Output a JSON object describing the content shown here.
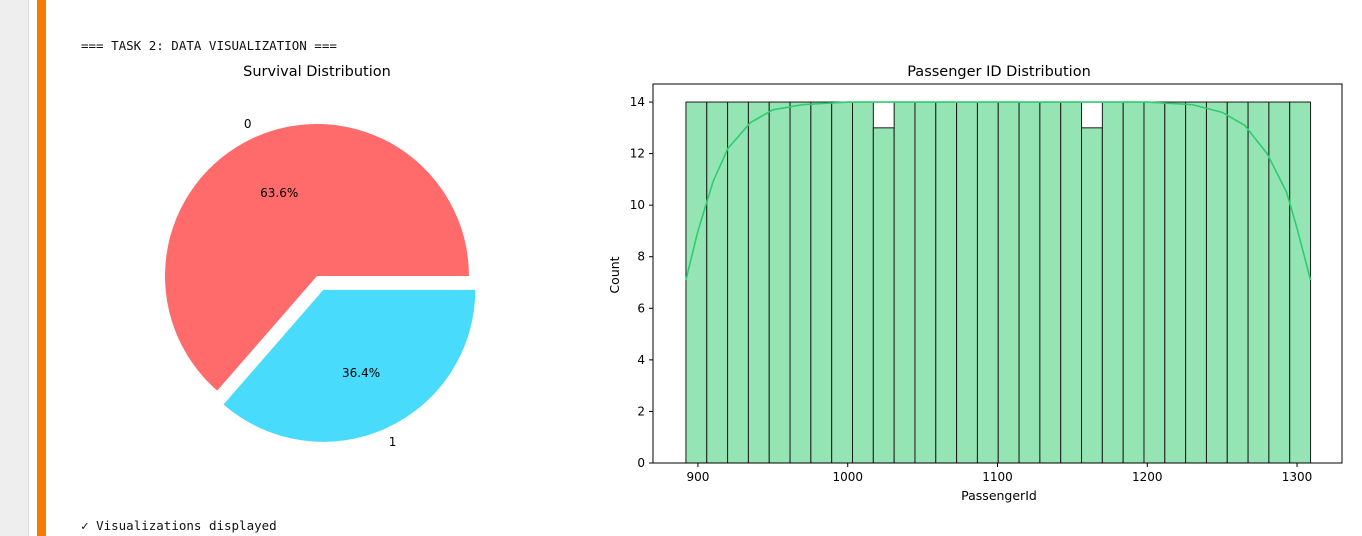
{
  "cell": {
    "accent_color": "#f57c00",
    "header_text": "=== TASK 2: DATA VISUALIZATION ===",
    "status_icon": "✓",
    "status_text": "Visualizations displayed"
  },
  "chart_data": [
    {
      "type": "pie",
      "title": "Survival Distribution",
      "labels": [
        "0",
        "1"
      ],
      "values": [
        63.6,
        36.4
      ],
      "value_labels": [
        "63.6%",
        "36.4%"
      ],
      "colors": [
        "#ff6b6b",
        "#48dbfb"
      ],
      "explode": [
        0,
        0.1
      ]
    },
    {
      "type": "bar",
      "subtype": "histogram_with_kde",
      "title": "Passenger ID Distribution",
      "xlabel": "PassengerId",
      "ylabel": "Count",
      "bar_color": "#95e5b4",
      "kde_color": "#2ecc71",
      "xlim": [
        870,
        1330
      ],
      "ylim": [
        0,
        14.7
      ],
      "xticks": [
        900,
        1000,
        1100,
        1200,
        1300
      ],
      "yticks": [
        0,
        2,
        4,
        6,
        8,
        10,
        12,
        14
      ],
      "bin_start": 892,
      "bin_end": 1309,
      "counts": [
        14,
        14,
        14,
        14,
        14,
        14,
        14,
        14,
        14,
        13,
        14,
        14,
        14,
        14,
        14,
        14,
        14,
        14,
        14,
        13,
        14,
        14,
        14,
        14,
        14,
        14,
        14,
        14,
        14,
        14
      ],
      "kde": [
        [
          892,
          7.1
        ],
        [
          900,
          9.0
        ],
        [
          910,
          10.9
        ],
        [
          920,
          12.2
        ],
        [
          935,
          13.2
        ],
        [
          950,
          13.7
        ],
        [
          970,
          13.9
        ],
        [
          1000,
          14.0
        ],
        [
          1100,
          14.0
        ],
        [
          1200,
          14.0
        ],
        [
          1230,
          13.9
        ],
        [
          1250,
          13.6
        ],
        [
          1265,
          13.1
        ],
        [
          1280,
          12.0
        ],
        [
          1293,
          10.5
        ],
        [
          1300,
          9.1
        ],
        [
          1309,
          7.1
        ]
      ]
    }
  ]
}
